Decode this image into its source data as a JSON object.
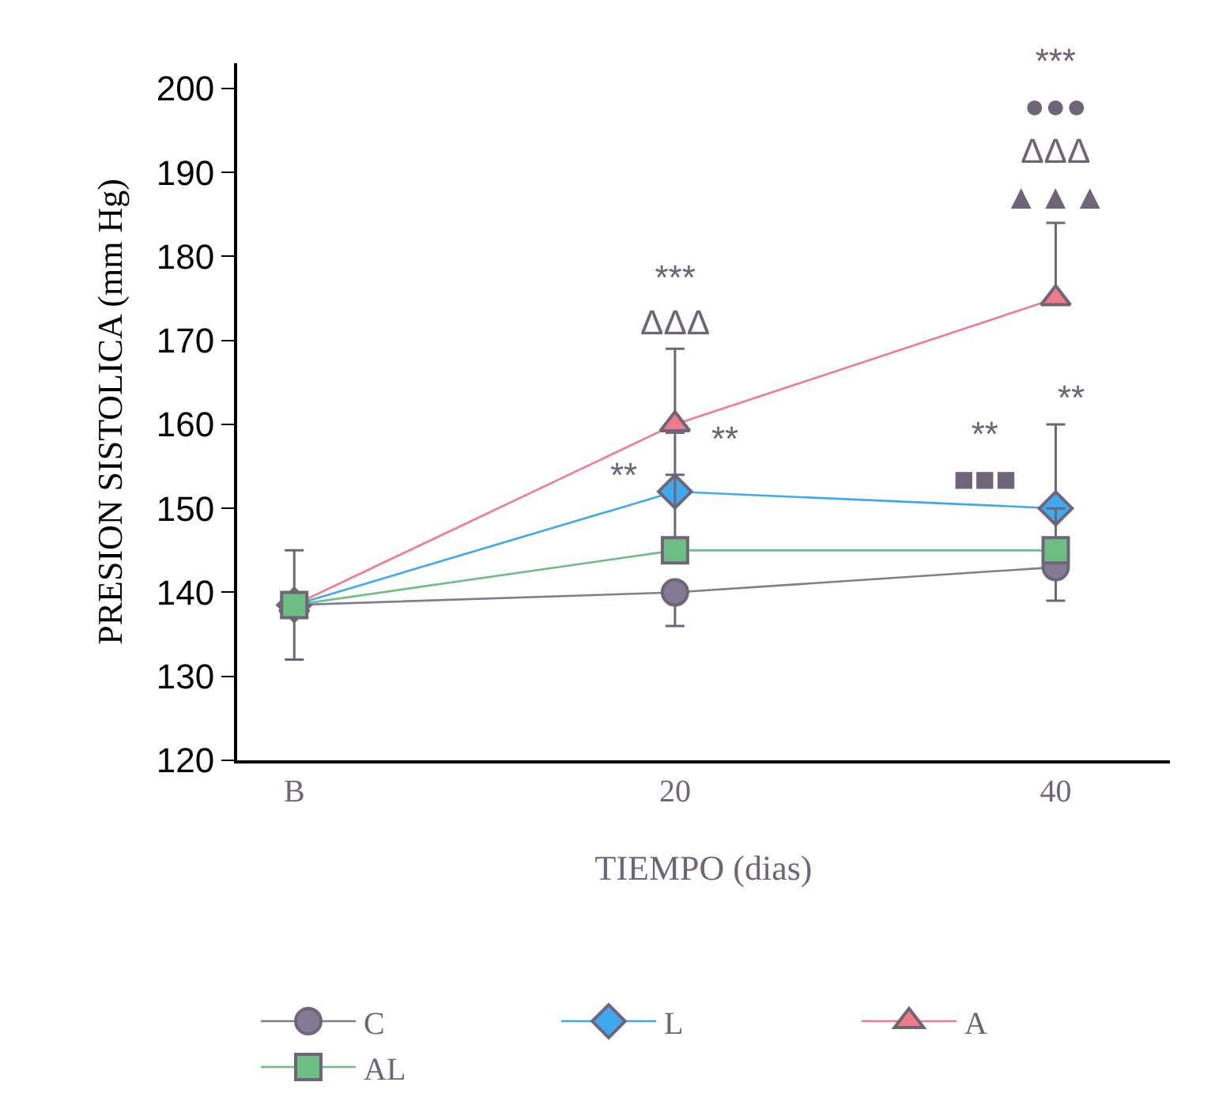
{
  "chart_data": {
    "type": "line",
    "xlabel": "TIEMPO (dias)",
    "ylabel": "PRESION SISTOLICA (mm Hg)",
    "categories": [
      "B",
      "20",
      "40"
    ],
    "ylim": [
      120,
      203
    ],
    "yticks": [
      120,
      130,
      140,
      150,
      160,
      170,
      180,
      190,
      200
    ],
    "legend": "bottom",
    "series": [
      {
        "name": "C",
        "color": "#847a93",
        "marker": "circle",
        "values": [
          138.5,
          140,
          143
        ],
        "errors": [
          [
            132,
            145
          ],
          [
            136,
            140
          ],
          [
            139,
            143
          ]
        ]
      },
      {
        "name": "L",
        "color": "#3fa9f0",
        "marker": "diamond",
        "values": [
          138.5,
          152,
          150
        ],
        "errors": [
          null,
          [
            152,
            159
          ],
          [
            150,
            160
          ]
        ]
      },
      {
        "name": "A",
        "color": "#f27a8a",
        "marker": "triangle",
        "values": [
          138.5,
          160,
          175
        ],
        "errors": [
          null,
          [
            160,
            169
          ],
          [
            175,
            184
          ]
        ]
      },
      {
        "name": "AL",
        "color": "#6dbd85",
        "marker": "square",
        "values": [
          138.5,
          145,
          145
        ],
        "errors": [
          null,
          [
            145,
            154
          ],
          [
            145,
            150
          ]
        ]
      }
    ],
    "annotations": [
      {
        "text": "***\nΔΔΔ",
        "x": "20",
        "y": 160
      },
      {
        "text": "**",
        "x": "20",
        "y": 145
      },
      {
        "text": "**",
        "x": "20",
        "y": 152
      },
      {
        "text": "***\n●●●\nΔΔΔ\n▲▲▲",
        "x": "40",
        "y": 175
      },
      {
        "text": "**\n■■■",
        "x": "40",
        "y": 145
      },
      {
        "text": "**",
        "x": "40",
        "y": 150
      }
    ]
  }
}
